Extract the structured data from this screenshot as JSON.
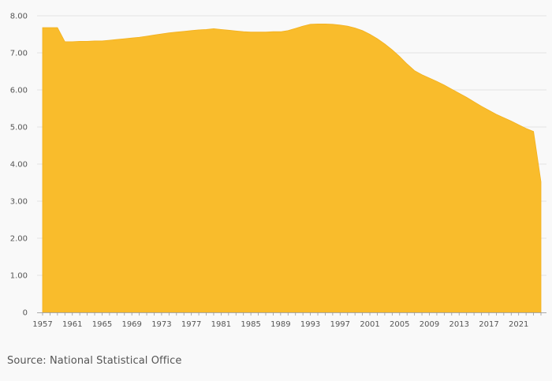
{
  "chart_data": {
    "type": "area",
    "title": "",
    "xlabel": "",
    "ylabel": "",
    "ylim": [
      0,
      8
    ],
    "xlim": [
      1957,
      2024
    ],
    "grid": true,
    "colors": {
      "area": "#F9BC2C",
      "area_stroke": "#F2B01E",
      "grid": "#e3e3e3",
      "axis": "#aaaaaa"
    },
    "y_ticks": [
      "0",
      "1.00",
      "2.00",
      "3.00",
      "4.00",
      "5.00",
      "6.00",
      "7.00",
      "8.00"
    ],
    "x_ticks": [
      "1957",
      "1961",
      "1965",
      "1969",
      "1973",
      "1977",
      "1981",
      "1985",
      "1989",
      "1993",
      "1997",
      "2001",
      "2005",
      "2009",
      "2013",
      "2017",
      "2021"
    ],
    "series": [
      {
        "x": [
          1957,
          1958,
          1959,
          1960,
          1961,
          1962,
          1963,
          1964,
          1965,
          1966,
          1967,
          1968,
          1969,
          1970,
          1971,
          1972,
          1973,
          1974,
          1975,
          1976,
          1977,
          1978,
          1979,
          1980,
          1981,
          1982,
          1983,
          1984,
          1985,
          1986,
          1987,
          1988,
          1989,
          1990,
          1991,
          1992,
          1993,
          1994,
          1995,
          1996,
          1997,
          1998,
          1999,
          2000,
          2001,
          2002,
          2003,
          2004,
          2005,
          2006,
          2007,
          2008,
          2009,
          2010,
          2011,
          2012,
          2013,
          2014,
          2015,
          2016,
          2017,
          2018,
          2019,
          2020,
          2021,
          2022,
          2023,
          2024
        ],
        "values": [
          7.68,
          7.68,
          7.68,
          7.3,
          7.3,
          7.31,
          7.31,
          7.32,
          7.32,
          7.34,
          7.36,
          7.38,
          7.4,
          7.42,
          7.45,
          7.48,
          7.51,
          7.54,
          7.56,
          7.58,
          7.6,
          7.62,
          7.63,
          7.65,
          7.63,
          7.61,
          7.59,
          7.57,
          7.56,
          7.56,
          7.56,
          7.57,
          7.57,
          7.6,
          7.66,
          7.72,
          7.77,
          7.78,
          7.78,
          7.77,
          7.75,
          7.72,
          7.67,
          7.6,
          7.5,
          7.38,
          7.24,
          7.08,
          6.9,
          6.7,
          6.52,
          6.41,
          6.32,
          6.23,
          6.13,
          6.02,
          5.91,
          5.8,
          5.68,
          5.56,
          5.45,
          5.34,
          5.25,
          5.16,
          5.06,
          4.96,
          4.88,
          3.52
        ]
      }
    ]
  },
  "source": {
    "text": "Source: National Statistical Office"
  }
}
